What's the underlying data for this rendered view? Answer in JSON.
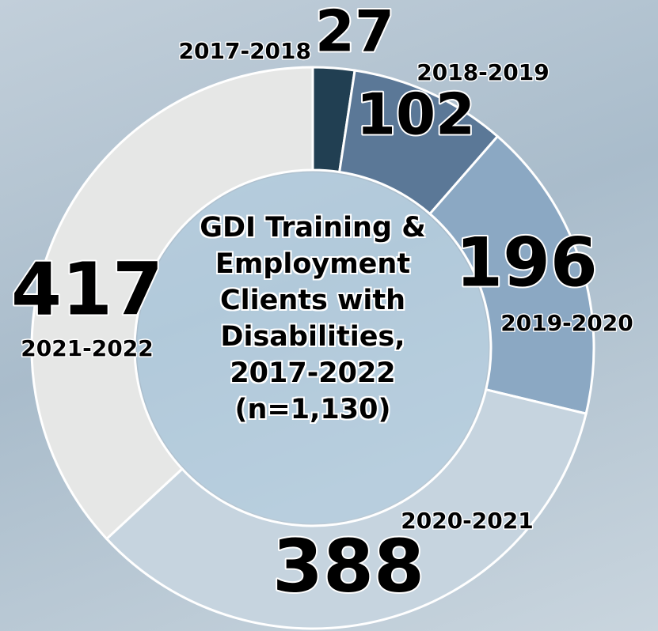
{
  "chart_data": {
    "type": "donut",
    "title": "GDI Training & Employment Clients with Disabilities, 2017-2022 (n=1,130)",
    "categories": [
      "2017-2018",
      "2018-2019",
      "2019-2020",
      "2020-2021",
      "2021-2022"
    ],
    "values": [
      27,
      102,
      196,
      388,
      417
    ],
    "colors": [
      "#213f52",
      "#5b7897",
      "#8ba8c3",
      "#c6d4df",
      "#e6e7e6"
    ]
  }
}
